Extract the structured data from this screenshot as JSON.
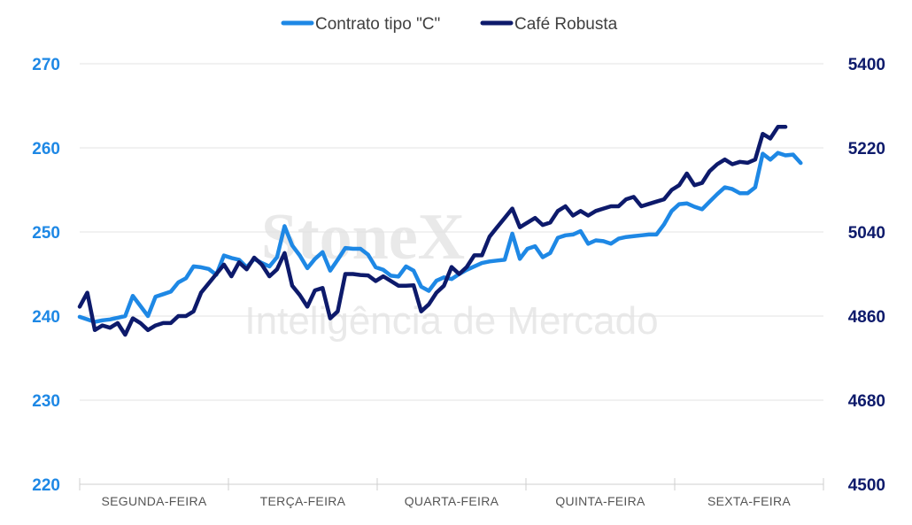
{
  "chart_data": {
    "type": "line",
    "legend_position": "top-center",
    "grid": true,
    "watermark": {
      "logo": "StoneX",
      "tagline": "Inteligência de Mercado"
    },
    "categories": [
      "SEGUNDA-FEIRA",
      "TERÇA-FEIRA",
      "QUARTA-FEIRA",
      "QUINTA-FEIRA",
      "SEXTA-FEIRA"
    ],
    "y_left": {
      "min": 220,
      "max": 270,
      "ticks": [
        "220",
        "230",
        "240",
        "250",
        "260",
        "270"
      ],
      "color": "#1e88e5"
    },
    "y_right": {
      "min": 4500,
      "max": 5400,
      "ticks": [
        "4500",
        "4680",
        "4860",
        "5040",
        "5220",
        "5400"
      ],
      "color": "#0d1a6b"
    },
    "series": [
      {
        "name": "Contrato tipo \"C\"",
        "axis": "left",
        "color": "#1e88e5",
        "points": [
          [
            0.0,
            239.9
          ],
          [
            0.2,
            239.6
          ],
          [
            0.4,
            239.3
          ],
          [
            0.6,
            239.5
          ],
          [
            0.8,
            239.6
          ],
          [
            1.0,
            239.8
          ],
          [
            1.2,
            240.0
          ],
          [
            1.4,
            242.4
          ],
          [
            1.6,
            241.2
          ],
          [
            1.8,
            240.0
          ],
          [
            2.0,
            242.3
          ],
          [
            2.2,
            242.6
          ],
          [
            2.4,
            242.9
          ],
          [
            2.6,
            244.0
          ],
          [
            2.8,
            244.5
          ],
          [
            3.0,
            245.9
          ],
          [
            3.2,
            245.8
          ],
          [
            3.4,
            245.6
          ],
          [
            3.6,
            244.9
          ],
          [
            3.8,
            247.2
          ],
          [
            4.0,
            246.9
          ],
          [
            4.2,
            246.7
          ],
          [
            4.4,
            245.8
          ],
          [
            4.6,
            246.8
          ],
          [
            4.8,
            246.3
          ],
          [
            5.0,
            245.9
          ],
          [
            5.2,
            247.0
          ],
          [
            5.4,
            250.7
          ],
          [
            5.6,
            248.4
          ],
          [
            5.8,
            247.2
          ],
          [
            6.0,
            245.7
          ],
          [
            6.2,
            246.8
          ],
          [
            6.4,
            247.6
          ],
          [
            6.6,
            245.4
          ],
          [
            6.8,
            246.7
          ],
          [
            7.0,
            248.1
          ],
          [
            7.2,
            248.0
          ],
          [
            7.4,
            248.0
          ],
          [
            7.6,
            247.3
          ],
          [
            7.8,
            245.8
          ],
          [
            8.0,
            245.5
          ],
          [
            8.2,
            244.8
          ],
          [
            8.4,
            244.7
          ],
          [
            8.6,
            245.9
          ],
          [
            8.8,
            245.4
          ],
          [
            9.0,
            243.5
          ],
          [
            9.2,
            243.0
          ],
          [
            9.4,
            244.2
          ],
          [
            9.6,
            244.6
          ],
          [
            9.8,
            244.4
          ],
          [
            10.0,
            245.0
          ],
          [
            10.2,
            245.5
          ],
          [
            10.4,
            245.9
          ],
          [
            10.6,
            246.3
          ],
          [
            10.8,
            246.5
          ],
          [
            11.0,
            246.6
          ],
          [
            11.2,
            246.7
          ],
          [
            11.4,
            249.8
          ],
          [
            11.6,
            246.8
          ],
          [
            11.8,
            248.0
          ],
          [
            12.0,
            248.3
          ],
          [
            12.2,
            247.0
          ],
          [
            12.4,
            247.5
          ],
          [
            12.6,
            249.3
          ],
          [
            12.8,
            249.6
          ],
          [
            13.0,
            249.7
          ],
          [
            13.2,
            250.1
          ],
          [
            13.4,
            248.6
          ],
          [
            13.6,
            249.0
          ],
          [
            13.8,
            248.9
          ],
          [
            14.0,
            248.6
          ],
          [
            14.2,
            249.2
          ],
          [
            14.4,
            249.4
          ],
          [
            14.6,
            249.5
          ],
          [
            14.8,
            249.6
          ],
          [
            15.0,
            249.7
          ],
          [
            15.2,
            249.7
          ],
          [
            15.4,
            250.9
          ],
          [
            15.6,
            252.5
          ],
          [
            15.8,
            253.3
          ],
          [
            16.0,
            253.4
          ],
          [
            16.2,
            253.0
          ],
          [
            16.4,
            252.7
          ],
          [
            16.6,
            253.6
          ],
          [
            16.8,
            254.5
          ],
          [
            17.0,
            255.3
          ],
          [
            17.2,
            255.1
          ],
          [
            17.4,
            254.6
          ],
          [
            17.6,
            254.6
          ],
          [
            17.8,
            255.3
          ],
          [
            18.0,
            259.3
          ],
          [
            18.2,
            258.6
          ],
          [
            18.4,
            259.4
          ],
          [
            18.6,
            259.1
          ],
          [
            18.8,
            259.2
          ],
          [
            19.0,
            258.2
          ]
        ]
      },
      {
        "name": "Café Robusta",
        "axis": "right",
        "color": "#0d1a6b",
        "points": [
          [
            0.0,
            4880
          ],
          [
            0.2,
            4910
          ],
          [
            0.4,
            4830
          ],
          [
            0.6,
            4840
          ],
          [
            0.8,
            4835
          ],
          [
            1.0,
            4845
          ],
          [
            1.2,
            4820
          ],
          [
            1.4,
            4855
          ],
          [
            1.6,
            4845
          ],
          [
            1.8,
            4830
          ],
          [
            2.0,
            4840
          ],
          [
            2.2,
            4845
          ],
          [
            2.4,
            4845
          ],
          [
            2.6,
            4860
          ],
          [
            2.8,
            4860
          ],
          [
            3.0,
            4870
          ],
          [
            3.2,
            4910
          ],
          [
            3.4,
            4930
          ],
          [
            3.6,
            4950
          ],
          [
            3.8,
            4970
          ],
          [
            4.0,
            4945
          ],
          [
            4.2,
            4975
          ],
          [
            4.4,
            4960
          ],
          [
            4.6,
            4985
          ],
          [
            4.8,
            4970
          ],
          [
            5.0,
            4945
          ],
          [
            5.2,
            4960
          ],
          [
            5.4,
            4995
          ],
          [
            5.6,
            4925
          ],
          [
            5.8,
            4905
          ],
          [
            6.0,
            4880
          ],
          [
            6.2,
            4915
          ],
          [
            6.4,
            4920
          ],
          [
            6.6,
            4855
          ],
          [
            6.8,
            4870
          ],
          [
            7.0,
            4950
          ],
          [
            7.2,
            4950
          ],
          [
            7.4,
            4948
          ],
          [
            7.6,
            4947
          ],
          [
            7.8,
            4935
          ],
          [
            8.0,
            4945
          ],
          [
            8.2,
            4935
          ],
          [
            8.4,
            4925
          ],
          [
            8.6,
            4925
          ],
          [
            8.8,
            4926
          ],
          [
            9.0,
            4870
          ],
          [
            9.2,
            4885
          ],
          [
            9.4,
            4910
          ],
          [
            9.6,
            4925
          ],
          [
            9.8,
            4965
          ],
          [
            10.0,
            4950
          ],
          [
            10.2,
            4965
          ],
          [
            10.4,
            4990
          ],
          [
            10.6,
            4990
          ],
          [
            10.8,
            5030
          ],
          [
            11.0,
            5050
          ],
          [
            11.2,
            5070
          ],
          [
            11.4,
            5090
          ],
          [
            11.6,
            5050
          ],
          [
            11.8,
            5060
          ],
          [
            12.0,
            5070
          ],
          [
            12.2,
            5055
          ],
          [
            12.4,
            5060
          ],
          [
            12.6,
            5085
          ],
          [
            12.8,
            5095
          ],
          [
            13.0,
            5075
          ],
          [
            13.2,
            5085
          ],
          [
            13.4,
            5075
          ],
          [
            13.6,
            5085
          ],
          [
            13.8,
            5090
          ],
          [
            14.0,
            5095
          ],
          [
            14.2,
            5095
          ],
          [
            14.4,
            5110
          ],
          [
            14.6,
            5115
          ],
          [
            14.8,
            5095
          ],
          [
            15.0,
            5100
          ],
          [
            15.2,
            5105
          ],
          [
            15.4,
            5110
          ],
          [
            15.6,
            5130
          ],
          [
            15.8,
            5140
          ],
          [
            16.0,
            5165
          ],
          [
            16.2,
            5140
          ],
          [
            16.4,
            5145
          ],
          [
            16.6,
            5170
          ],
          [
            16.8,
            5185
          ],
          [
            17.0,
            5195
          ],
          [
            17.2,
            5185
          ],
          [
            17.4,
            5190
          ],
          [
            17.6,
            5188
          ],
          [
            17.8,
            5195
          ],
          [
            18.0,
            5250
          ],
          [
            18.2,
            5240
          ],
          [
            18.4,
            5265
          ],
          [
            18.6,
            5265
          ]
        ]
      }
    ]
  }
}
